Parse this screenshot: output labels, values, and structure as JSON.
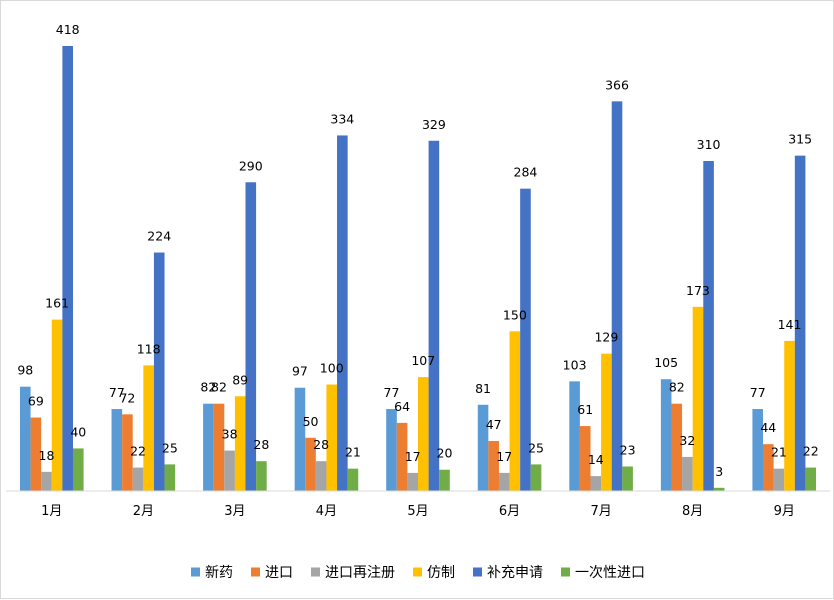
{
  "chart_data": {
    "type": "bar",
    "title": "",
    "xlabel": "",
    "ylabel": "",
    "categories": [
      "1月",
      "2月",
      "3月",
      "4月",
      "5月",
      "6月",
      "7月",
      "8月",
      "9月"
    ],
    "series": [
      {
        "name": "新药",
        "color": "#5b9bd5",
        "values": [
          98,
          77,
          82,
          97,
          77,
          81,
          103,
          105,
          77
        ]
      },
      {
        "name": "进口",
        "color": "#ed7d31",
        "values": [
          69,
          72,
          82,
          50,
          64,
          47,
          61,
          82,
          44
        ]
      },
      {
        "name": "进口再注册",
        "color": "#a5a5a5",
        "values": [
          18,
          22,
          38,
          28,
          17,
          17,
          14,
          32,
          21
        ]
      },
      {
        "name": "仿制",
        "color": "#ffc000",
        "values": [
          161,
          118,
          89,
          100,
          107,
          150,
          129,
          173,
          141
        ]
      },
      {
        "name": "补充申请",
        "color": "#4472c4",
        "values": [
          418,
          224,
          290,
          334,
          329,
          284,
          366,
          310,
          315
        ]
      },
      {
        "name": "一次性进口",
        "color": "#70ad47",
        "values": [
          40,
          25,
          28,
          21,
          20,
          25,
          23,
          3,
          22
        ]
      }
    ],
    "ylim": [
      0,
      420
    ],
    "grid": false,
    "data_labels": true,
    "legend_position": "bottom"
  }
}
